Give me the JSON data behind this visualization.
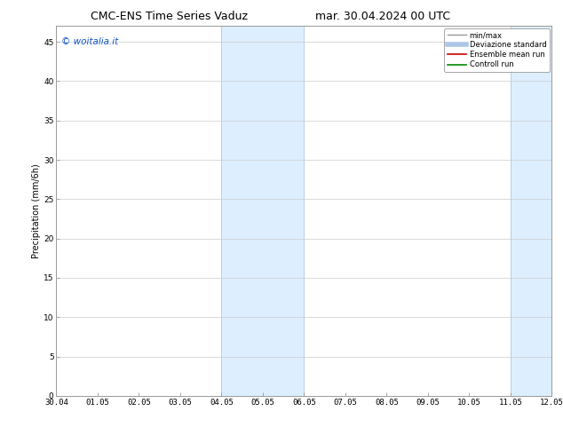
{
  "title_left": "CMC-ENS Time Series Vaduz",
  "title_right": "mar. 30.04.2024 00 UTC",
  "xlabel": "",
  "ylabel": "Precipitation (mm/6h)",
  "ylim": [
    0,
    47
  ],
  "yticks": [
    0,
    5,
    10,
    15,
    20,
    25,
    30,
    35,
    40,
    45
  ],
  "xtick_labels": [
    "30.04",
    "01.05",
    "02.05",
    "03.05",
    "04.05",
    "05.05",
    "06.05",
    "07.05",
    "08.05",
    "09.05",
    "10.05",
    "11.05",
    "12.05"
  ],
  "shaded_regions": [
    {
      "xstart": 4.0,
      "xend": 6.0,
      "color": "#ddeeff"
    },
    {
      "xstart": 11.0,
      "xend": 13.0,
      "color": "#ddeeff"
    }
  ],
  "watermark": "© woitalia.it",
  "watermark_color": "#1155cc",
  "watermark_fontsize": 7.5,
  "legend_entries": [
    {
      "label": "min/max",
      "color": "#999999",
      "lw": 1.0,
      "style": "solid"
    },
    {
      "label": "Deviazione standard",
      "color": "#aec6e8",
      "lw": 4,
      "style": "solid"
    },
    {
      "label": "Ensemble mean run",
      "color": "#cc0000",
      "lw": 1.2,
      "style": "solid"
    },
    {
      "label": "Controll run",
      "color": "#008800",
      "lw": 1.2,
      "style": "solid"
    }
  ],
  "background_color": "#ffffff",
  "grid_color": "#cccccc",
  "title_fontsize": 9,
  "tick_fontsize": 6.5,
  "ylabel_fontsize": 7,
  "legend_fontsize": 6,
  "border_color": "#999999",
  "shade_border_color": "#b0c8e8"
}
